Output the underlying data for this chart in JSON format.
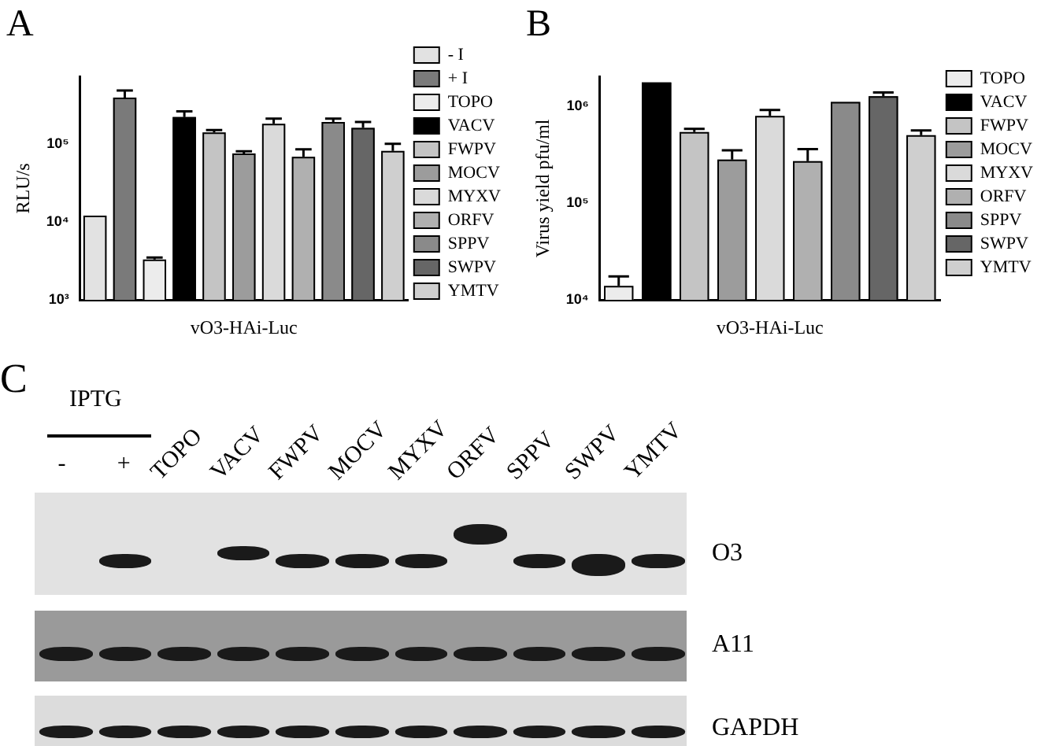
{
  "chart_data": [
    {
      "type": "bar",
      "title": "A",
      "ylabel": "RLU/s",
      "xlabel": "vO3-HAi-Luc",
      "categories": [
        null,
        null,
        null,
        null,
        null,
        null,
        null,
        null,
        null,
        null,
        null
      ],
      "log": "y",
      "legend": "right",
      "ylim": [
        1000,
        720000
      ],
      "yticks": [
        {
          "value": 1000,
          "label": "10³"
        },
        {
          "value": 10000,
          "label": "10⁴"
        },
        {
          "value": 100000,
          "label": "10⁵"
        }
      ],
      "series": [
        {
          "name": "- I",
          "color": "#e2e2e2",
          "values": [
            12000,
            null,
            null,
            null,
            null,
            null,
            null,
            null,
            null,
            null,
            null
          ],
          "errors": [
            null,
            null,
            null,
            null,
            null,
            null,
            null,
            null,
            null,
            null,
            null
          ]
        },
        {
          "name": "+ I",
          "color": "#7a7a7a",
          "values": [
            null,
            390000,
            null,
            null,
            null,
            null,
            null,
            null,
            null,
            null,
            null
          ],
          "errors": [
            null,
            90000,
            null,
            null,
            null,
            null,
            null,
            null,
            null,
            null,
            null
          ]
        },
        {
          "name": "TOPO",
          "color": "#ececec",
          "values": [
            null,
            null,
            3300,
            null,
            null,
            null,
            null,
            null,
            null,
            null,
            null
          ],
          "errors": [
            null,
            null,
            200,
            null,
            null,
            null,
            null,
            null,
            null,
            null,
            null
          ]
        },
        {
          "name": "VACV",
          "color": "#000000",
          "values": [
            null,
            null,
            null,
            220000,
            null,
            null,
            null,
            null,
            null,
            null,
            null
          ],
          "errors": [
            null,
            null,
            null,
            40000,
            null,
            null,
            null,
            null,
            null,
            null,
            null
          ]
        },
        {
          "name": "FWPV",
          "color": "#c4c4c4",
          "values": [
            null,
            null,
            null,
            null,
            140000,
            null,
            null,
            null,
            null,
            null,
            null
          ],
          "errors": [
            null,
            null,
            null,
            null,
            10000,
            null,
            null,
            null,
            null,
            null,
            null
          ]
        },
        {
          "name": "MOCV",
          "color": "#9c9c9c",
          "values": [
            null,
            null,
            null,
            null,
            null,
            75000,
            null,
            null,
            null,
            null,
            null
          ],
          "errors": [
            null,
            null,
            null,
            null,
            null,
            5000,
            null,
            null,
            null,
            null,
            null
          ]
        },
        {
          "name": "MYXV",
          "color": "#dadada",
          "values": [
            null,
            null,
            null,
            null,
            null,
            null,
            180000,
            null,
            null,
            null,
            null
          ],
          "errors": [
            null,
            null,
            null,
            null,
            null,
            null,
            30000,
            null,
            null,
            null,
            null
          ]
        },
        {
          "name": "ORFV",
          "color": "#b0b0b0",
          "values": [
            null,
            null,
            null,
            null,
            null,
            null,
            null,
            68000,
            null,
            null,
            null
          ],
          "errors": [
            null,
            null,
            null,
            null,
            null,
            null,
            null,
            17000,
            null,
            null,
            null
          ]
        },
        {
          "name": "SPPV",
          "color": "#8a8a8a",
          "values": [
            null,
            null,
            null,
            null,
            null,
            null,
            null,
            null,
            190000,
            null,
            null
          ],
          "errors": [
            null,
            null,
            null,
            null,
            null,
            null,
            null,
            null,
            20000,
            null,
            null
          ]
        },
        {
          "name": "SWPV",
          "color": "#666666",
          "values": [
            null,
            null,
            null,
            null,
            null,
            null,
            null,
            null,
            null,
            160000,
            null
          ],
          "errors": [
            null,
            null,
            null,
            null,
            null,
            null,
            null,
            null,
            null,
            30000,
            null
          ]
        },
        {
          "name": "YMTV",
          "color": "#cfcfcf",
          "values": [
            null,
            null,
            null,
            null,
            null,
            null,
            null,
            null,
            null,
            null,
            81000
          ],
          "errors": [
            null,
            null,
            null,
            null,
            null,
            null,
            null,
            null,
            null,
            null,
            19000
          ]
        }
      ]
    },
    {
      "type": "bar",
      "title": "B",
      "ylabel": "Virus yield pfu/ml",
      "xlabel": "vO3-HAi-Luc",
      "categories": [
        null,
        null,
        null,
        null,
        null,
        null,
        null,
        null,
        null
      ],
      "log": "y",
      "legend": "right",
      "ylim": [
        10000,
        2000000
      ],
      "yticks": [
        {
          "value": 10000,
          "label": "10⁴"
        },
        {
          "value": 100000,
          "label": "10⁵"
        },
        {
          "value": 1000000,
          "label": "10⁶"
        }
      ],
      "series": [
        {
          "name": "TOPO",
          "color": "#ececec",
          "values": [
            14000,
            null,
            null,
            null,
            null,
            null,
            null,
            null,
            null
          ],
          "errors": [
            3500,
            null,
            null,
            null,
            null,
            null,
            null,
            null,
            null
          ]
        },
        {
          "name": "VACV",
          "color": "#000000",
          "values": [
            null,
            1750000,
            null,
            null,
            null,
            null,
            null,
            null,
            null
          ],
          "errors": [
            null,
            null,
            null,
            null,
            null,
            null,
            null,
            null,
            null
          ]
        },
        {
          "name": "FWPV",
          "color": "#c4c4c4",
          "values": [
            null,
            null,
            540000,
            null,
            null,
            null,
            null,
            null,
            null
          ],
          "errors": [
            null,
            null,
            40000,
            null,
            null,
            null,
            null,
            null,
            null
          ]
        },
        {
          "name": "MOCV",
          "color": "#9c9c9c",
          "values": [
            null,
            null,
            null,
            280000,
            null,
            null,
            null,
            null,
            null
          ],
          "errors": [
            null,
            null,
            null,
            70000,
            null,
            null,
            null,
            null,
            null
          ]
        },
        {
          "name": "MYXV",
          "color": "#dadada",
          "values": [
            null,
            null,
            null,
            null,
            790000,
            null,
            null,
            null,
            null
          ],
          "errors": [
            null,
            null,
            null,
            null,
            120000,
            null,
            null,
            null,
            null
          ]
        },
        {
          "name": "ORFV",
          "color": "#b0b0b0",
          "values": [
            null,
            null,
            null,
            null,
            null,
            270000,
            null,
            null,
            null
          ],
          "errors": [
            null,
            null,
            null,
            null,
            null,
            90000,
            null,
            null,
            null
          ]
        },
        {
          "name": "SPPV",
          "color": "#8a8a8a",
          "values": [
            null,
            null,
            null,
            null,
            null,
            null,
            1100000,
            null,
            null
          ],
          "errors": [
            null,
            null,
            null,
            null,
            null,
            null,
            null,
            null,
            null
          ]
        },
        {
          "name": "SWPV",
          "color": "#666666",
          "values": [
            null,
            null,
            null,
            null,
            null,
            null,
            null,
            1260000,
            null
          ],
          "errors": [
            null,
            null,
            null,
            null,
            null,
            null,
            null,
            120000,
            null
          ]
        },
        {
          "name": "YMTV",
          "color": "#cfcfcf",
          "values": [
            null,
            null,
            null,
            null,
            null,
            null,
            null,
            null,
            500000
          ],
          "errors": [
            null,
            null,
            null,
            null,
            null,
            null,
            null,
            null,
            60000
          ]
        }
      ]
    },
    {
      "type": "other",
      "title": "C",
      "annotations": [
        "IPTG",
        "-",
        "+",
        "TOPO",
        "VACV",
        "FWPV",
        "MOCV",
        "MYXV",
        "ORFV",
        "SPPV",
        "SWPV",
        "YMTV",
        "O3",
        "A11",
        "GAPDH"
      ]
    }
  ]
}
